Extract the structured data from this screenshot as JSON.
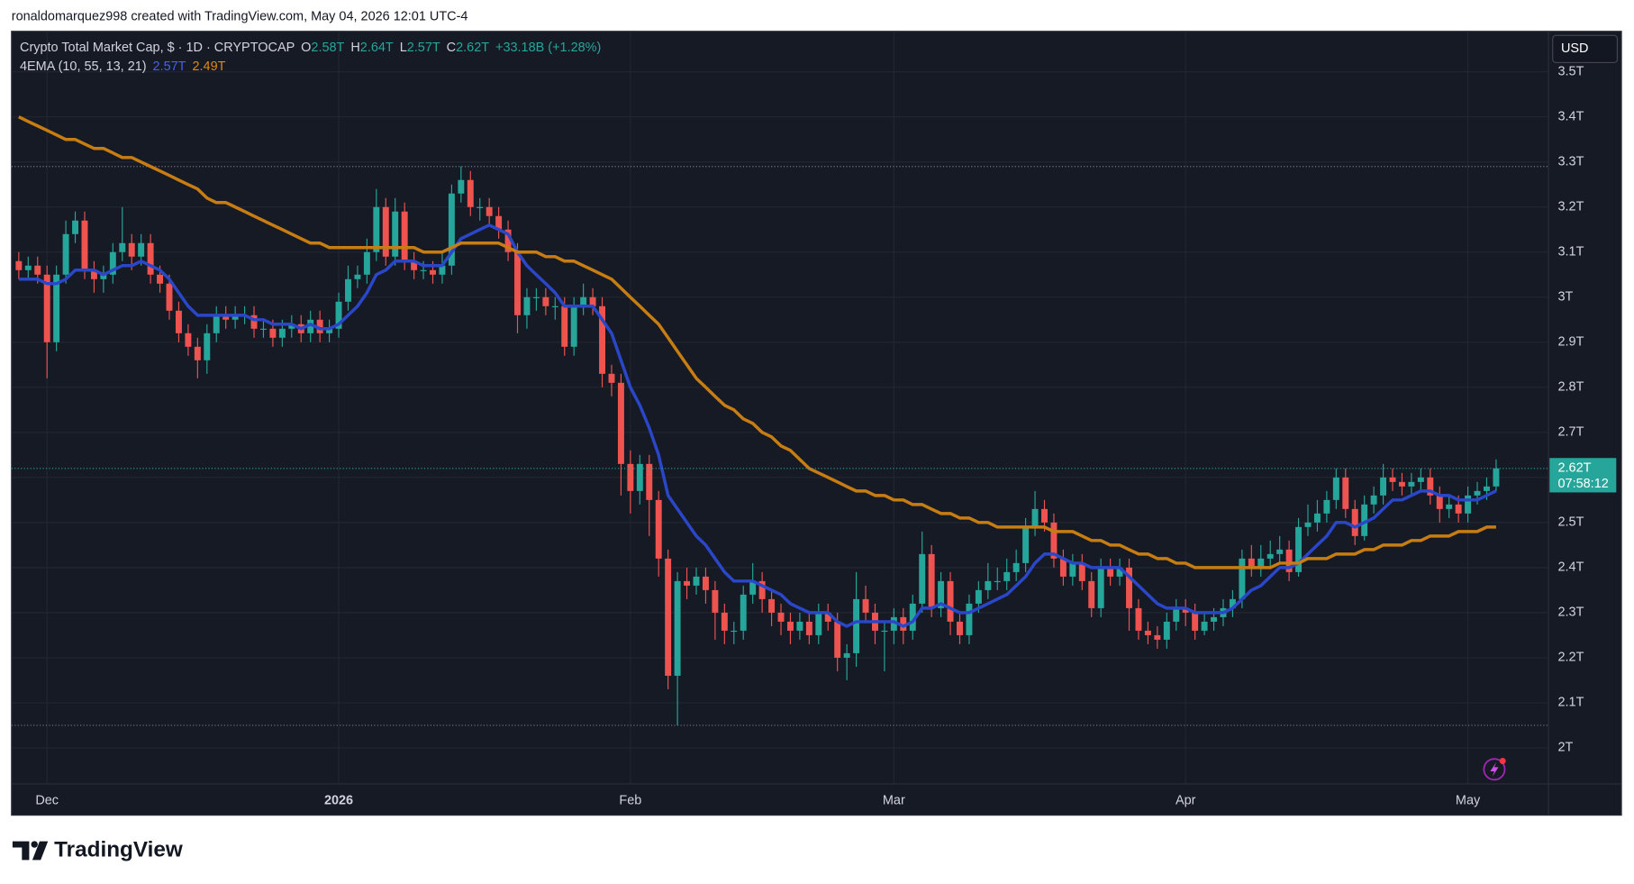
{
  "chart_data": {
    "type": "candlestick",
    "credit": "ronaldomarquez998 created with TradingView.com, May 04, 2026 12:01 UTC-4",
    "brand": "TradingView",
    "currency": "USD",
    "legend": {
      "symbol": "Crypto Total Market Cap, $ · 1D · CRYPTOCAP",
      "open_label": "O",
      "open": "2.58T",
      "high_label": "H",
      "high": "2.64T",
      "low_label": "L",
      "low": "2.57T",
      "close_label": "C",
      "close": "2.62T",
      "change": "+33.18B (+1.28%)"
    },
    "indicator": {
      "label": "4EMA (10, 55, 13, 21)",
      "values": [
        "2.57T",
        "2.49T"
      ]
    },
    "last_price_label": "2.62T",
    "countdown": "07:58:12",
    "up_color": "#26a69a",
    "down_color": "#ef5350",
    "ylim": [
      1.92,
      3.59
    ],
    "yticks": [
      {
        "value": 2,
        "label": "2T"
      },
      {
        "value": 2.1,
        "label": "2.1T"
      },
      {
        "value": 2.2,
        "label": "2.2T"
      },
      {
        "value": 2.3,
        "label": "2.3T"
      },
      {
        "value": 2.4,
        "label": "2.4T"
      },
      {
        "value": 2.5,
        "label": "2.5T"
      },
      {
        "value": 2.6,
        "label": "2.6T"
      },
      {
        "value": 2.7,
        "label": "2.7T"
      },
      {
        "value": 2.8,
        "label": "2.8T"
      },
      {
        "value": 2.9,
        "label": "2.9T"
      },
      {
        "value": 3,
        "label": "3T"
      },
      {
        "value": 3.1,
        "label": "3.1T"
      },
      {
        "value": 3.2,
        "label": "3.2T"
      },
      {
        "value": 3.3,
        "label": "3.3T"
      },
      {
        "value": 3.4,
        "label": "3.4T"
      },
      {
        "value": 3.5,
        "label": "3.5T"
      }
    ],
    "grid": true,
    "categories": [
      null,
      null,
      null,
      "Dec",
      null,
      null,
      null,
      null,
      null,
      null,
      null,
      null,
      null,
      null,
      null,
      null,
      null,
      null,
      null,
      null,
      null,
      null,
      null,
      null,
      null,
      null,
      null,
      null,
      null,
      null,
      null,
      null,
      null,
      null,
      "2026",
      null,
      null,
      null,
      null,
      null,
      null,
      null,
      null,
      null,
      null,
      null,
      null,
      null,
      null,
      null,
      null,
      null,
      null,
      null,
      null,
      null,
      null,
      null,
      null,
      null,
      null,
      null,
      null,
      null,
      null,
      "Feb",
      null,
      null,
      null,
      null,
      null,
      null,
      null,
      null,
      null,
      null,
      null,
      null,
      null,
      null,
      null,
      null,
      null,
      null,
      null,
      null,
      null,
      null,
      null,
      null,
      null,
      null,
      null,
      "Mar",
      null,
      null,
      null,
      null,
      null,
      null,
      null,
      null,
      null,
      null,
      null,
      null,
      null,
      null,
      null,
      null,
      null,
      null,
      null,
      null,
      null,
      null,
      null,
      null,
      null,
      null,
      null,
      null,
      null,
      null,
      "Apr",
      null,
      null,
      null,
      null,
      null,
      null,
      null,
      null,
      null,
      null,
      null,
      null,
      null,
      null,
      null,
      null,
      null,
      null,
      null,
      null,
      null,
      null,
      null,
      null,
      null,
      null,
      null,
      null,
      null,
      "May",
      null,
      null,
      null
    ],
    "open": [
      3.08,
      3.06,
      3.07,
      3.05,
      2.9,
      3.05,
      3.14,
      3.17,
      3.06,
      3.04,
      3.05,
      3.1,
      3.12,
      3.09,
      3.12,
      3.05,
      3.03,
      2.97,
      2.92,
      2.89,
      2.86,
      2.92,
      2.96,
      2.95,
      2.96,
      2.96,
      2.93,
      2.93,
      2.91,
      2.93,
      2.94,
      2.92,
      2.95,
      2.92,
      2.93,
      2.99,
      3.04,
      3.05,
      3.1,
      3.2,
      3.09,
      3.19,
      3.08,
      3.06,
      3.06,
      3.05,
      3.07,
      3.23,
      3.26,
      3.2,
      3.2,
      3.18,
      3.15,
      3.1,
      2.96,
      3.0,
      3.0,
      2.98,
      2.98,
      2.89,
      2.98,
      3.0,
      2.98,
      2.83,
      2.81,
      2.63,
      2.57,
      2.63,
      2.55,
      2.42,
      2.16,
      2.37,
      2.36,
      2.38,
      2.35,
      2.3,
      2.26,
      2.26,
      2.34,
      2.37,
      2.33,
      2.3,
      2.28,
      2.26,
      2.28,
      2.25,
      2.3,
      2.28,
      2.2,
      2.21,
      2.33,
      2.3,
      2.26,
      2.26,
      2.29,
      2.26,
      2.32,
      2.43,
      2.31,
      2.37,
      2.28,
      2.25,
      2.32,
      2.35,
      2.37,
      2.37,
      2.39,
      2.41,
      2.49,
      2.53,
      2.5,
      2.42,
      2.38,
      2.41,
      2.37,
      2.31,
      2.4,
      2.38,
      2.4,
      2.31,
      2.26,
      2.25,
      2.24,
      2.28,
      2.31,
      2.3,
      2.26,
      2.28,
      2.29,
      2.31,
      2.33,
      2.42,
      2.4,
      2.42,
      2.43,
      2.44,
      2.39,
      2.49,
      2.5,
      2.52,
      2.55,
      2.6,
      2.53,
      2.47,
      2.54,
      2.56,
      2.6,
      2.59,
      2.58,
      2.59,
      2.6,
      2.56,
      2.53,
      2.54,
      2.52,
      2.56,
      2.57,
      2.58
    ],
    "high": [
      3.1,
      3.09,
      3.09,
      3.07,
      3.07,
      3.17,
      3.19,
      3.19,
      3.08,
      3.07,
      3.12,
      3.2,
      3.14,
      3.14,
      3.14,
      3.07,
      3.05,
      2.99,
      2.94,
      2.91,
      2.94,
      2.98,
      2.98,
      2.98,
      2.98,
      2.98,
      2.95,
      2.95,
      2.95,
      2.96,
      2.96,
      2.97,
      2.97,
      2.95,
      3.01,
      3.07,
      3.07,
      3.13,
      3.24,
      3.22,
      3.22,
      3.21,
      3.1,
      3.08,
      3.08,
      3.1,
      3.25,
      3.29,
      3.28,
      3.22,
      3.22,
      3.2,
      3.17,
      3.12,
      3.02,
      3.02,
      3.02,
      3.0,
      3.0,
      3.0,
      3.03,
      3.02,
      3.0,
      2.85,
      2.83,
      2.66,
      2.65,
      2.65,
      2.57,
      2.44,
      2.39,
      2.4,
      2.4,
      2.4,
      2.37,
      2.32,
      2.28,
      2.36,
      2.41,
      2.39,
      2.35,
      2.32,
      2.3,
      2.3,
      2.3,
      2.32,
      2.32,
      2.3,
      2.23,
      2.39,
      2.36,
      2.32,
      2.28,
      2.31,
      2.31,
      2.34,
      2.48,
      2.45,
      2.39,
      2.39,
      2.3,
      2.34,
      2.37,
      2.41,
      2.4,
      2.42,
      2.44,
      2.51,
      2.57,
      2.55,
      2.52,
      2.44,
      2.43,
      2.43,
      2.39,
      2.42,
      2.42,
      2.42,
      2.42,
      2.33,
      2.28,
      2.27,
      2.3,
      2.33,
      2.33,
      2.32,
      2.3,
      2.31,
      2.33,
      2.35,
      2.44,
      2.45,
      2.45,
      2.46,
      2.47,
      2.46,
      2.51,
      2.54,
      2.55,
      2.57,
      2.62,
      2.62,
      2.55,
      2.56,
      2.58,
      2.63,
      2.62,
      2.61,
      2.61,
      2.62,
      2.62,
      2.58,
      2.56,
      2.56,
      2.58,
      2.59,
      2.6,
      2.64
    ],
    "low": [
      3.04,
      3.04,
      3.03,
      2.82,
      2.88,
      3.03,
      3.12,
      3.04,
      3.01,
      3.01,
      3.03,
      3.08,
      3.06,
      3.07,
      3.03,
      3.01,
      2.95,
      2.9,
      2.87,
      2.82,
      2.83,
      2.9,
      2.93,
      2.93,
      2.94,
      2.91,
      2.91,
      2.89,
      2.89,
      2.91,
      2.9,
      2.9,
      2.9,
      2.9,
      2.91,
      2.97,
      3.02,
      3.03,
      3.08,
      3.07,
      3.07,
      3.06,
      3.04,
      3.04,
      3.03,
      3.03,
      3.05,
      3.21,
      3.18,
      3.17,
      3.16,
      3.13,
      3.08,
      2.92,
      2.93,
      2.97,
      2.96,
      2.95,
      2.87,
      2.87,
      2.96,
      2.96,
      2.8,
      2.78,
      2.56,
      2.52,
      2.54,
      2.47,
      2.38,
      2.13,
      2.05,
      2.33,
      2.34,
      2.32,
      2.24,
      2.23,
      2.23,
      2.24,
      2.32,
      2.3,
      2.27,
      2.25,
      2.23,
      2.24,
      2.23,
      2.23,
      2.26,
      2.17,
      2.15,
      2.18,
      2.28,
      2.23,
      2.17,
      2.23,
      2.23,
      2.24,
      2.3,
      2.29,
      2.29,
      2.25,
      2.23,
      2.23,
      2.3,
      2.33,
      2.35,
      2.35,
      2.37,
      2.39,
      2.47,
      2.48,
      2.4,
      2.36,
      2.36,
      2.35,
      2.29,
      2.29,
      2.36,
      2.36,
      2.26,
      2.24,
      2.23,
      2.22,
      2.22,
      2.26,
      2.27,
      2.24,
      2.25,
      2.26,
      2.27,
      2.29,
      2.31,
      2.38,
      2.38,
      2.4,
      2.41,
      2.37,
      2.38,
      2.47,
      2.48,
      2.5,
      2.53,
      2.51,
      2.45,
      2.46,
      2.52,
      2.54,
      2.57,
      2.56,
      2.56,
      2.57,
      2.54,
      2.5,
      2.51,
      2.5,
      2.5,
      2.54,
      2.55,
      2.57
    ],
    "close": [
      3.06,
      3.07,
      3.05,
      2.9,
      3.05,
      3.14,
      3.17,
      3.06,
      3.04,
      3.05,
      3.1,
      3.12,
      3.09,
      3.12,
      3.05,
      3.03,
      2.97,
      2.92,
      2.89,
      2.86,
      2.92,
      2.96,
      2.95,
      2.96,
      2.96,
      2.93,
      2.93,
      2.91,
      2.93,
      2.94,
      2.92,
      2.95,
      2.92,
      2.93,
      2.99,
      3.04,
      3.05,
      3.1,
      3.2,
      3.09,
      3.19,
      3.08,
      3.06,
      3.06,
      3.05,
      3.07,
      3.23,
      3.26,
      3.2,
      3.2,
      3.18,
      3.15,
      3.1,
      2.96,
      3.0,
      3.0,
      2.98,
      2.98,
      2.89,
      2.98,
      3.0,
      2.98,
      2.83,
      2.81,
      2.63,
      2.57,
      2.63,
      2.55,
      2.42,
      2.16,
      2.37,
      2.36,
      2.38,
      2.35,
      2.3,
      2.26,
      2.26,
      2.34,
      2.37,
      2.33,
      2.3,
      2.28,
      2.26,
      2.28,
      2.25,
      2.3,
      2.28,
      2.2,
      2.21,
      2.33,
      2.3,
      2.26,
      2.26,
      2.29,
      2.26,
      2.32,
      2.43,
      2.31,
      2.37,
      2.28,
      2.25,
      2.32,
      2.35,
      2.37,
      2.37,
      2.39,
      2.41,
      2.49,
      2.53,
      2.5,
      2.42,
      2.38,
      2.41,
      2.37,
      2.31,
      2.4,
      2.38,
      2.4,
      2.31,
      2.26,
      2.25,
      2.24,
      2.28,
      2.31,
      2.3,
      2.26,
      2.28,
      2.29,
      2.31,
      2.33,
      2.42,
      2.4,
      2.42,
      2.43,
      2.44,
      2.39,
      2.49,
      2.5,
      2.52,
      2.55,
      2.6,
      2.53,
      2.47,
      2.54,
      2.56,
      2.6,
      2.59,
      2.58,
      2.59,
      2.6,
      2.56,
      2.53,
      2.54,
      2.52,
      2.56,
      2.57,
      2.58,
      2.62
    ],
    "ema": [
      {
        "color": "#2b47c9",
        "values": [
          3.04,
          3.04,
          3.04,
          3.03,
          3.03,
          3.04,
          3.06,
          3.06,
          3.06,
          3.05,
          3.06,
          3.07,
          3.07,
          3.08,
          3.07,
          3.06,
          3.04,
          3.01,
          2.98,
          2.96,
          2.96,
          2.96,
          2.96,
          2.96,
          2.96,
          2.95,
          2.95,
          2.94,
          2.94,
          2.94,
          2.93,
          2.94,
          2.93,
          2.93,
          2.94,
          2.96,
          2.98,
          3.01,
          3.05,
          3.06,
          3.08,
          3.08,
          3.08,
          3.07,
          3.07,
          3.07,
          3.1,
          3.13,
          3.14,
          3.15,
          3.16,
          3.15,
          3.14,
          3.1,
          3.07,
          3.05,
          3.03,
          3.01,
          2.98,
          2.98,
          2.98,
          2.98,
          2.95,
          2.92,
          2.86,
          2.8,
          2.76,
          2.71,
          2.65,
          2.56,
          2.53,
          2.5,
          2.47,
          2.45,
          2.42,
          2.39,
          2.37,
          2.37,
          2.37,
          2.36,
          2.35,
          2.34,
          2.32,
          2.31,
          2.3,
          2.3,
          2.3,
          2.28,
          2.27,
          2.28,
          2.28,
          2.28,
          2.28,
          2.28,
          2.27,
          2.28,
          2.31,
          2.31,
          2.32,
          2.31,
          2.3,
          2.3,
          2.31,
          2.32,
          2.33,
          2.34,
          2.36,
          2.38,
          2.41,
          2.43,
          2.43,
          2.42,
          2.41,
          2.41,
          2.4,
          2.4,
          2.4,
          2.4,
          2.38,
          2.36,
          2.34,
          2.32,
          2.31,
          2.31,
          2.31,
          2.3,
          2.3,
          2.3,
          2.3,
          2.31,
          2.33,
          2.35,
          2.36,
          2.38,
          2.4,
          2.4,
          2.41,
          2.43,
          2.45,
          2.47,
          2.5,
          2.5,
          2.49,
          2.5,
          2.51,
          2.53,
          2.55,
          2.55,
          2.56,
          2.57,
          2.57,
          2.56,
          2.56,
          2.55,
          2.55,
          2.55,
          2.56,
          2.57
        ]
      },
      {
        "color": "#c77d12",
        "values": [
          3.4,
          3.39,
          3.38,
          3.37,
          3.36,
          3.35,
          3.35,
          3.34,
          3.33,
          3.33,
          3.32,
          3.31,
          3.31,
          3.3,
          3.29,
          3.28,
          3.27,
          3.26,
          3.25,
          3.24,
          3.22,
          3.21,
          3.21,
          3.2,
          3.19,
          3.18,
          3.17,
          3.16,
          3.15,
          3.14,
          3.13,
          3.12,
          3.12,
          3.11,
          3.11,
          3.11,
          3.11,
          3.11,
          3.11,
          3.11,
          3.11,
          3.11,
          3.11,
          3.1,
          3.1,
          3.1,
          3.11,
          3.12,
          3.12,
          3.12,
          3.12,
          3.12,
          3.11,
          3.1,
          3.1,
          3.1,
          3.09,
          3.09,
          3.08,
          3.08,
          3.07,
          3.06,
          3.05,
          3.04,
          3.02,
          3.0,
          2.98,
          2.96,
          2.94,
          2.91,
          2.88,
          2.85,
          2.82,
          2.8,
          2.78,
          2.76,
          2.75,
          2.73,
          2.72,
          2.7,
          2.69,
          2.67,
          2.66,
          2.64,
          2.62,
          2.61,
          2.6,
          2.59,
          2.58,
          2.57,
          2.57,
          2.56,
          2.56,
          2.55,
          2.55,
          2.54,
          2.54,
          2.53,
          2.52,
          2.52,
          2.51,
          2.51,
          2.5,
          2.5,
          2.49,
          2.49,
          2.49,
          2.49,
          2.49,
          2.49,
          2.48,
          2.48,
          2.48,
          2.47,
          2.46,
          2.46,
          2.45,
          2.45,
          2.44,
          2.43,
          2.43,
          2.42,
          2.42,
          2.41,
          2.41,
          2.4,
          2.4,
          2.4,
          2.4,
          2.4,
          2.4,
          2.4,
          2.4,
          2.4,
          2.41,
          2.41,
          2.41,
          2.42,
          2.42,
          2.42,
          2.43,
          2.43,
          2.43,
          2.44,
          2.44,
          2.45,
          2.45,
          2.45,
          2.46,
          2.46,
          2.47,
          2.47,
          2.47,
          2.48,
          2.48,
          2.48,
          2.49,
          2.49
        ]
      }
    ]
  }
}
